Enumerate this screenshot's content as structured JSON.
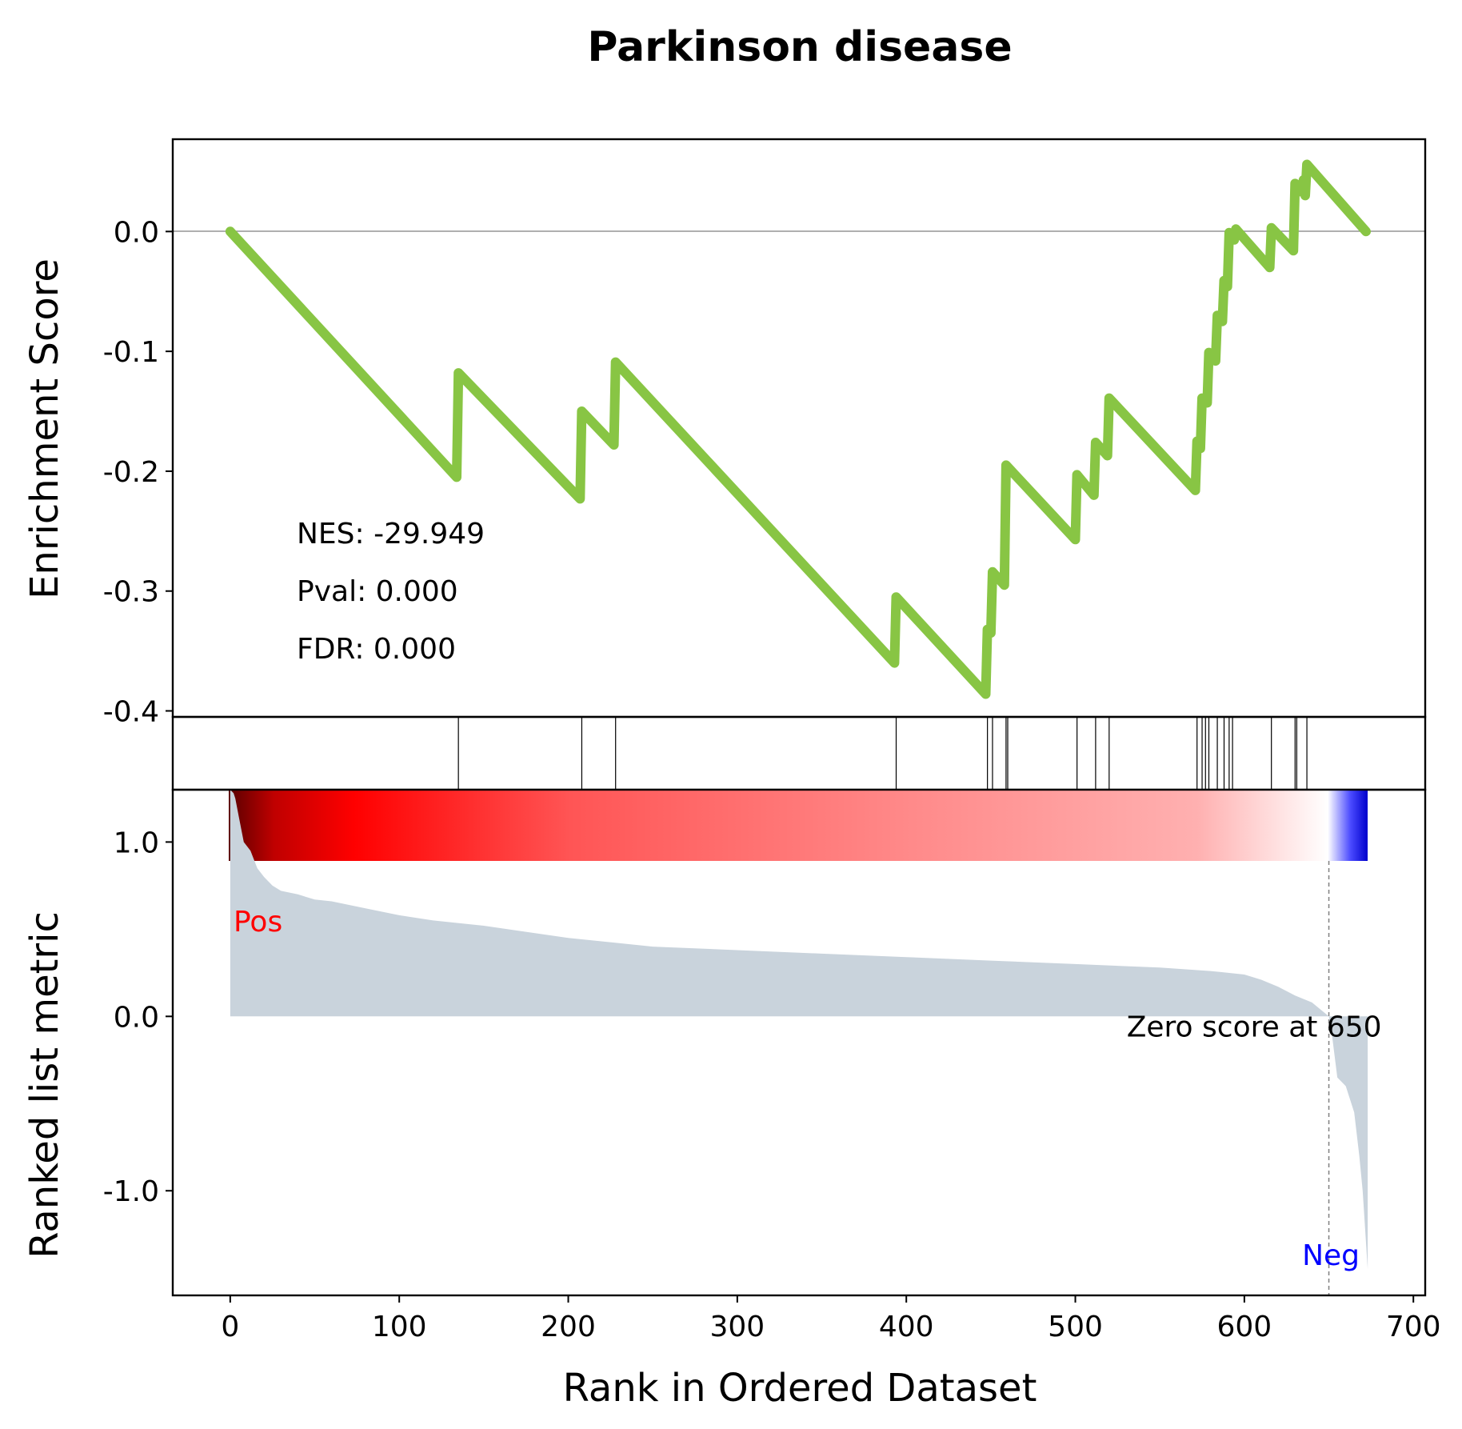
{
  "chart_data": {
    "type": "line",
    "title": "Parkinson disease",
    "xlabel": "Rank in Ordered Dataset",
    "es_panel": {
      "ylabel": "Enrichment Score",
      "ylim": [
        -0.405,
        0.077
      ],
      "yticks": [
        0.0,
        -0.1,
        -0.2,
        -0.3,
        -0.4
      ],
      "ytick_labels": [
        "0.0",
        "-0.1",
        "-0.2",
        "-0.3",
        "-0.4"
      ],
      "line_color": "#88c544",
      "series": [
        {
          "x": [
            0,
            134,
            135,
            207,
            208,
            227,
            228,
            393,
            394,
            447,
            448,
            450,
            451,
            458,
            459,
            500,
            501,
            511,
            512,
            519,
            520,
            571,
            572,
            574,
            575,
            578,
            579,
            583,
            584,
            587,
            588,
            590,
            591,
            594,
            595,
            615,
            616,
            629,
            630,
            634,
            635,
            636,
            637,
            672
          ],
          "y": [
            0.0,
            -0.205,
            -0.118,
            -0.223,
            -0.15,
            -0.178,
            -0.109,
            -0.36,
            -0.305,
            -0.386,
            -0.332,
            -0.335,
            -0.284,
            -0.295,
            -0.195,
            -0.257,
            -0.203,
            -0.22,
            -0.176,
            -0.187,
            -0.139,
            -0.216,
            -0.175,
            -0.181,
            -0.139,
            -0.143,
            -0.101,
            -0.108,
            -0.07,
            -0.075,
            -0.041,
            -0.046,
            -0.001,
            -0.007,
            0.002,
            -0.03,
            0.003,
            -0.016,
            0.04,
            0.033,
            0.043,
            0.03,
            0.056,
            0.0
          ]
        }
      ],
      "stats": [
        "NES: -29.949",
        "Pval: 0.000",
        "FDR: 0.000"
      ]
    },
    "hits": [
      135,
      208,
      228,
      394,
      448,
      451,
      459,
      460,
      501,
      512,
      520,
      572,
      575,
      577,
      579,
      584,
      588,
      591,
      593,
      616,
      630,
      631,
      637
    ],
    "ranked_panel": {
      "ylabel": "Ranked list metric",
      "ylim": [
        -1.6,
        1.3
      ],
      "yticks": [
        1.0,
        0.0,
        -1.0
      ],
      "ytick_labels": [
        "1.0",
        "0.0",
        "-1.0"
      ],
      "fill_color": "#c9d3dc",
      "x": [
        0,
        2,
        3,
        5,
        8,
        12,
        16,
        20,
        25,
        30,
        40,
        50,
        60,
        80,
        100,
        120,
        150,
        200,
        250,
        300,
        350,
        400,
        450,
        500,
        550,
        580,
        600,
        610,
        620,
        630,
        640,
        645,
        650,
        652,
        655,
        660,
        665,
        668,
        670,
        672,
        673
      ],
      "values": [
        1.3,
        1.28,
        1.25,
        1.15,
        1.0,
        0.95,
        0.85,
        0.8,
        0.75,
        0.72,
        0.7,
        0.67,
        0.66,
        0.62,
        0.58,
        0.55,
        0.52,
        0.45,
        0.4,
        0.38,
        0.36,
        0.34,
        0.32,
        0.3,
        0.28,
        0.26,
        0.24,
        0.21,
        0.17,
        0.12,
        0.08,
        0.04,
        0.0,
        -0.12,
        -0.35,
        -0.4,
        -0.55,
        -0.8,
        -1.0,
        -1.3,
        -1.45
      ],
      "labels": {
        "pos": "Pos",
        "neg": "Neg"
      },
      "pos_color": "#ff0000",
      "neg_color": "#0000ff",
      "zero_cross_label": "Zero score at 650",
      "zero_cross_x": 650
    },
    "xlim": [
      -34,
      707
    ],
    "xticks": [
      0,
      100,
      200,
      300,
      400,
      500,
      600,
      700
    ],
    "xtick_labels": [
      "0",
      "100",
      "200",
      "300",
      "400",
      "500",
      "600",
      "700"
    ],
    "colorbar": {
      "colors": [
        "#5a0000",
        "#ff0000",
        "#ff5555",
        "#ff8a8a",
        "#ffb0b0",
        "#ffffff",
        "#0000ff"
      ]
    }
  }
}
